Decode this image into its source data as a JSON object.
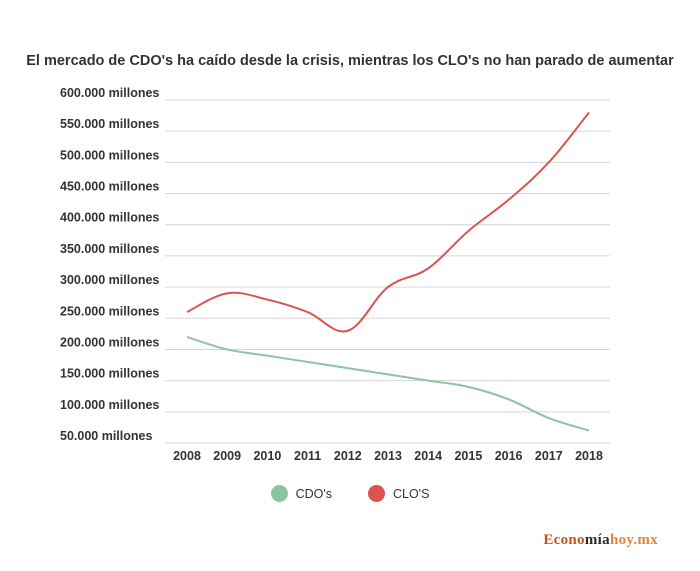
{
  "chart_data": {
    "type": "line",
    "title": "El mercado de CDO's ha caído desde la crisis, mientras los CLO's no han parado de aumentar",
    "x": [
      "2008",
      "2009",
      "2010",
      "2011",
      "2012",
      "2013",
      "2014",
      "2015",
      "2016",
      "2017",
      "2018"
    ],
    "ylim": [
      50000,
      600000
    ],
    "yticks": [
      {
        "value": 600000,
        "label": "600.000 millones"
      },
      {
        "value": 550000,
        "label": "550.000 millones"
      },
      {
        "value": 500000,
        "label": "500.000 millones"
      },
      {
        "value": 450000,
        "label": "450.000 millones"
      },
      {
        "value": 400000,
        "label": "400.000 millones"
      },
      {
        "value": 350000,
        "label": "350.000 millones"
      },
      {
        "value": 300000,
        "label": "300.000 millones"
      },
      {
        "value": 250000,
        "label": "250.000 millones"
      },
      {
        "value": 200000,
        "label": "200.000 millones"
      },
      {
        "value": 150000,
        "label": "150.000 millones"
      },
      {
        "value": 100000,
        "label": "100.000 millones"
      },
      {
        "value": 50000,
        "label": "50.000 millones"
      }
    ],
    "grid": true,
    "legend_position": "bottom",
    "series": [
      {
        "name": "CDO's",
        "color": "#8cc4a0",
        "values": [
          220000,
          200000,
          190000,
          180000,
          170000,
          160000,
          150000,
          140000,
          120000,
          90000,
          70000
        ]
      },
      {
        "name": "CLO'S",
        "color": "#d9534f",
        "values": [
          260000,
          290000,
          280000,
          260000,
          230000,
          300000,
          330000,
          390000,
          440000,
          500000,
          580000
        ]
      }
    ]
  },
  "brand": {
    "part1": "Econo",
    "part2": "mía",
    "part3": "hoy.mx"
  }
}
